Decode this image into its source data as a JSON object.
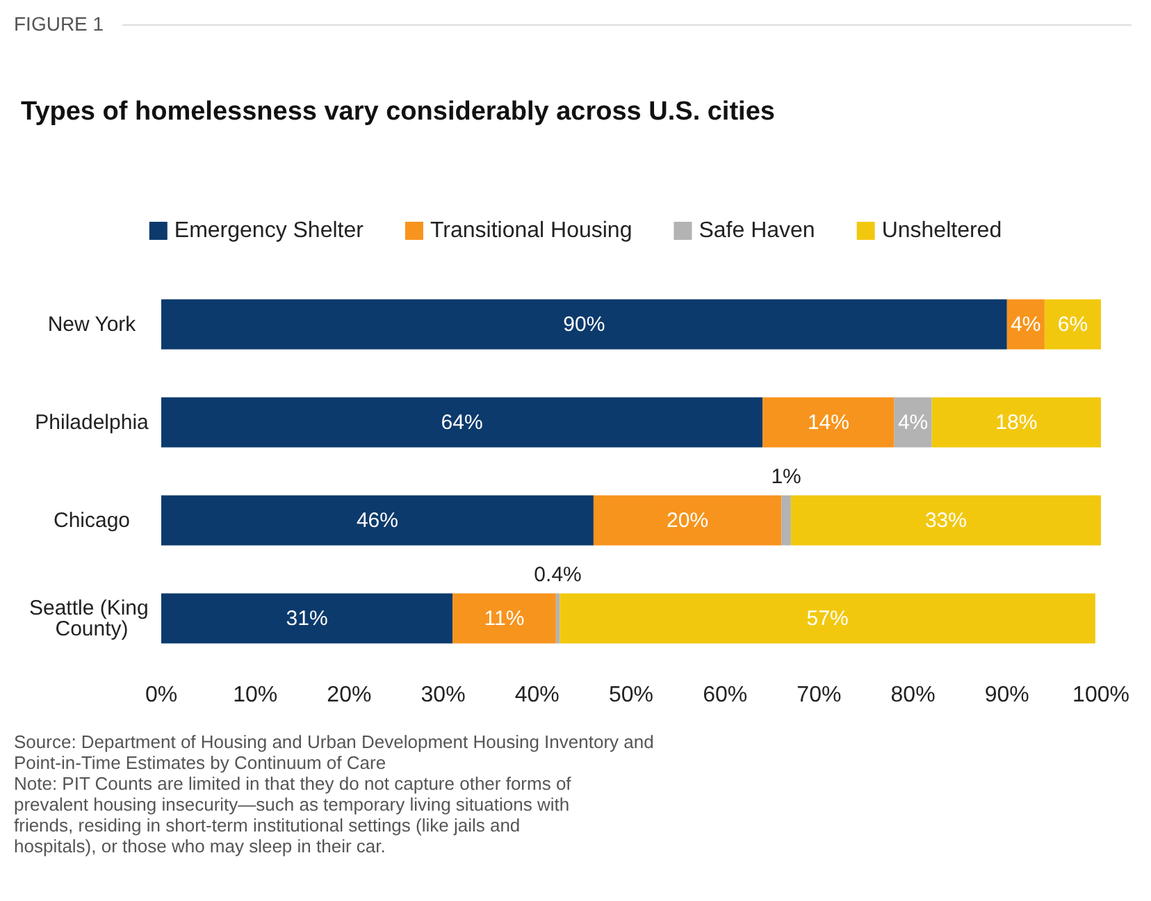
{
  "chart_data": {
    "type": "bar",
    "orientation": "horizontal",
    "stacked": true,
    "title": "Types of homelessness vary considerably across U.S. cities",
    "categories": [
      "New York",
      "Philadelphia",
      "Chicago",
      "Seattle (King County)"
    ],
    "series": [
      {
        "name": "Emergency Shelter",
        "color": "#0c3a6c",
        "values": [
          90,
          64,
          46,
          31
        ],
        "value_labels": [
          "90%",
          "64%",
          "46%",
          "31%"
        ]
      },
      {
        "name": "Transitional Housing",
        "color": "#f7941d",
        "values": [
          4,
          14,
          20,
          11
        ],
        "value_labels": [
          "4%",
          "14%",
          "20%",
          "11%"
        ]
      },
      {
        "name": "Safe Haven",
        "color": "#b3b3b3",
        "values": [
          null,
          4,
          1,
          0.4
        ],
        "value_labels": [
          null,
          "4%",
          "1%",
          "0.4%"
        ]
      },
      {
        "name": "Unsheltered",
        "color": "#f2c80f",
        "values": [
          6,
          18,
          33,
          57
        ],
        "value_labels": [
          "6%",
          "18%",
          "33%",
          "57%"
        ]
      }
    ],
    "xlim": [
      0,
      100
    ],
    "xticks": [
      {
        "value": 0,
        "label": "0%"
      },
      {
        "value": 10,
        "label": "10%"
      },
      {
        "value": 20,
        "label": "20%"
      },
      {
        "value": 30,
        "label": "30%"
      },
      {
        "value": 40,
        "label": "40%"
      },
      {
        "value": 50,
        "label": "50%"
      },
      {
        "value": 60,
        "label": "60%"
      },
      {
        "value": 70,
        "label": "70%"
      },
      {
        "value": 80,
        "label": "80%"
      },
      {
        "value": 90,
        "label": "90%"
      },
      {
        "value": 100,
        "label": "100%"
      }
    ],
    "grid": false,
    "legend": "top",
    "annotations": [
      "FIGURE 1",
      "Source: Department of Housing and Urban Development Housing Inventory and Point-in-Time Estimates by Continuum of Care",
      "Note: PIT Counts are limited in that they do not capture other forms of prevalent housing insecurity—such as temporary living situations with friends, residing in short-term institutional settings (like jails and hospitals), or those who may sleep in their car."
    ]
  }
}
